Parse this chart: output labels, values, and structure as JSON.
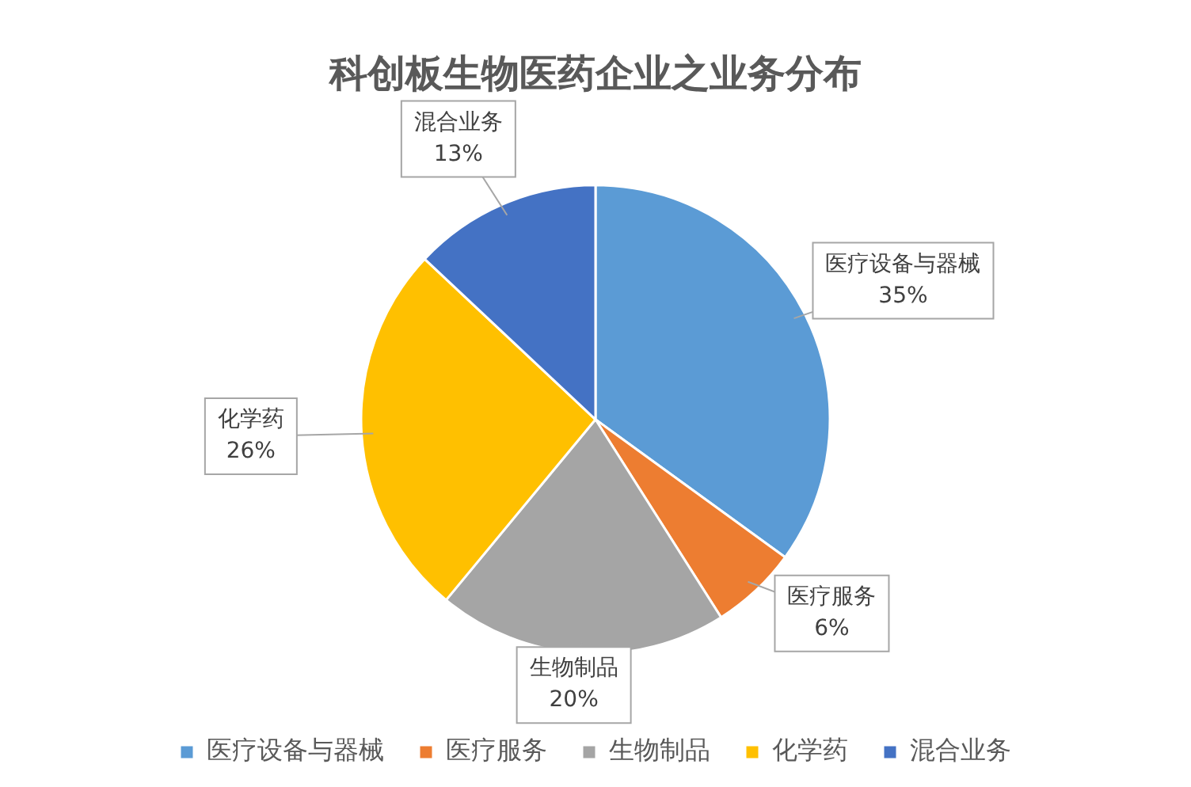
{
  "chart_data": {
    "type": "pie",
    "title": "科创板生物医药企业之业务分布",
    "categories": [
      "医疗设备与器械",
      "医疗服务",
      "生物制品",
      "化学药",
      "混合业务"
    ],
    "values": [
      35,
      6,
      20,
      26,
      13
    ],
    "colors": [
      "#5b9bd5",
      "#ed7d31",
      "#a5a5a5",
      "#ffc000",
      "#4472c4"
    ],
    "value_labels": [
      "35%",
      "6%",
      "20%",
      "26%",
      "13%"
    ],
    "legend": "bottom"
  }
}
